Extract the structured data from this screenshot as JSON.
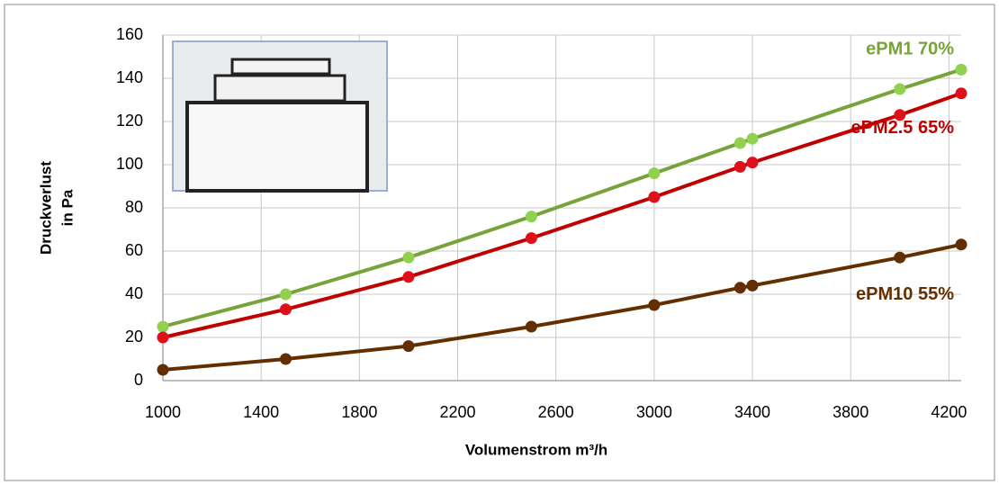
{
  "chart_data": {
    "type": "line",
    "x_label": "Volumenstrom m³/h",
    "y_label": [
      "Druckverlust",
      "in Pa"
    ],
    "x": [
      1000,
      1500,
      2000,
      2500,
      3000,
      3350,
      3400,
      4000,
      4250
    ],
    "series": [
      {
        "name": "ePM1 70%",
        "color": "#77a33b",
        "marker_color": "#92d050",
        "values": [
          25,
          40,
          57,
          76,
          96,
          110,
          112,
          135,
          144
        ]
      },
      {
        "name": "ePM2.5 65%",
        "color": "#c00000",
        "marker_color": "#e0101a",
        "values": [
          20,
          33,
          48,
          66,
          85,
          99,
          101,
          123,
          133
        ]
      },
      {
        "name": "ePM10 55%",
        "color": "#632f00",
        "marker_color": "#632f00",
        "values": [
          5,
          10,
          16,
          25,
          35,
          43,
          44,
          57,
          63
        ]
      }
    ],
    "xlim": [
      1000,
      4250
    ],
    "xticks": [
      1000,
      1400,
      1800,
      2200,
      2600,
      3000,
      3400,
      3800,
      4200
    ],
    "ylim": [
      0,
      160
    ],
    "yticks": [
      0,
      20,
      40,
      60,
      80,
      100,
      120,
      140,
      160
    ],
    "grid": true
  }
}
